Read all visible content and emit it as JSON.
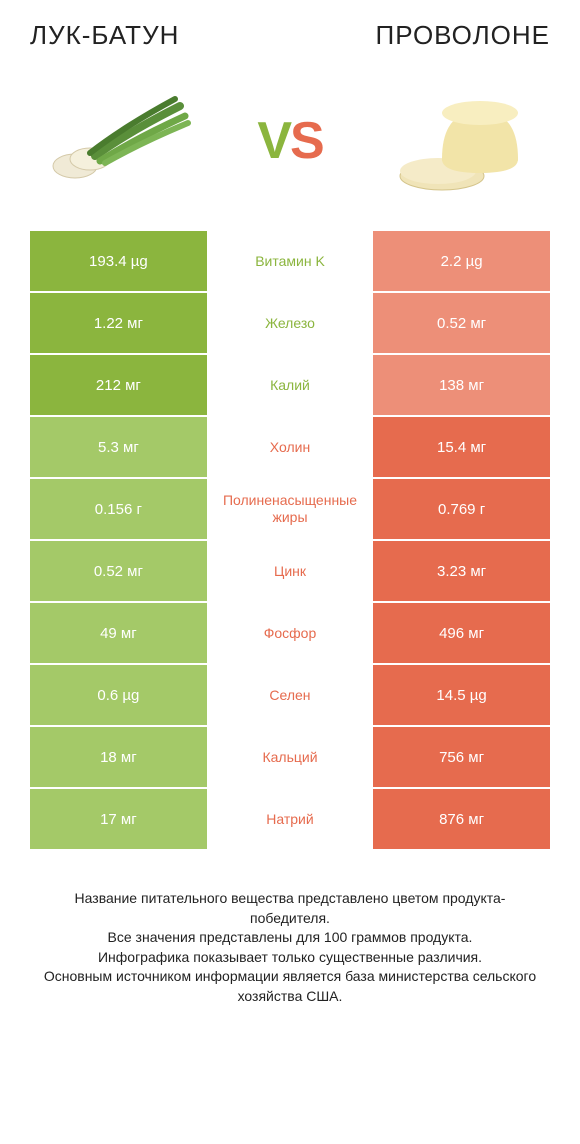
{
  "left_title": "ЛУК-БАТУН",
  "right_title": "ПРОВОЛОНЕ",
  "vs": {
    "v": "V",
    "s": "S"
  },
  "colors": {
    "green_win": "#8bb53e",
    "green_lose": "#a4c968",
    "orange_win": "#e66b4e",
    "orange_lose": "#ed8f78",
    "background": "#ffffff"
  },
  "rows": [
    {
      "label": "Витамин K",
      "left": "193.4 µg",
      "right": "2.2 µg",
      "winner": "left"
    },
    {
      "label": "Железо",
      "left": "1.22 мг",
      "right": "0.52 мг",
      "winner": "left"
    },
    {
      "label": "Калий",
      "left": "212 мг",
      "right": "138 мг",
      "winner": "left"
    },
    {
      "label": "Холин",
      "left": "5.3 мг",
      "right": "15.4 мг",
      "winner": "right"
    },
    {
      "label": "Полиненасыщенные жиры",
      "left": "0.156 г",
      "right": "0.769 г",
      "winner": "right"
    },
    {
      "label": "Цинк",
      "left": "0.52 мг",
      "right": "3.23 мг",
      "winner": "right"
    },
    {
      "label": "Фосфор",
      "left": "49 мг",
      "right": "496 мг",
      "winner": "right"
    },
    {
      "label": "Селен",
      "left": "0.6 µg",
      "right": "14.5 µg",
      "winner": "right"
    },
    {
      "label": "Кальций",
      "left": "18 мг",
      "right": "756 мг",
      "winner": "right"
    },
    {
      "label": "Натрий",
      "left": "17 мг",
      "right": "876 мг",
      "winner": "right"
    }
  ],
  "footer": [
    "Название питательного вещества представлено цветом продукта-победителя.",
    "Все значения представлены для 100 граммов продукта.",
    "Инфографика показывает только существенные различия.",
    "Основным источником информации является база министерства сельского хозяйства США."
  ]
}
